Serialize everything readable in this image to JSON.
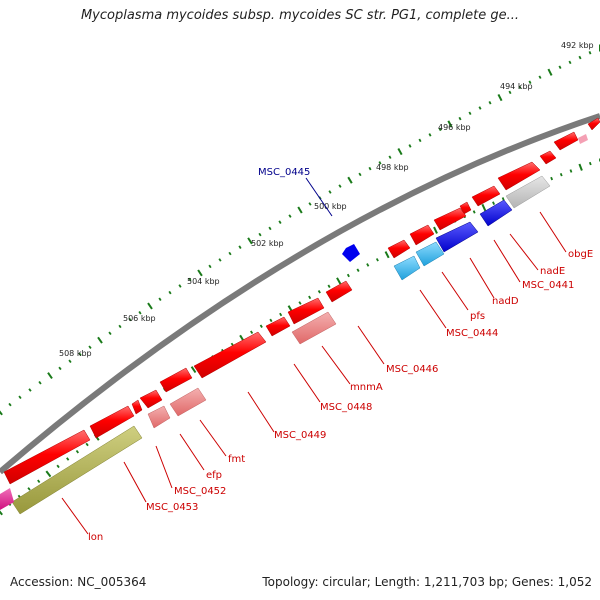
{
  "title": "Mycoplasma mycoides subsp. mycoides SC str. PG1, complete ge...",
  "footer": {
    "accession": "Accession: NC_005364",
    "summary": "Topology: circular; Length: 1,211,703 bp; Genes: 1,052"
  },
  "colors": {
    "backbone": "#7a7a7a",
    "gene_red": "#ff0000",
    "gene_light_red": "#e87c7c",
    "gene_blue": "#0000ee",
    "gene_cyan": "#33b4e8",
    "gene_gray": "#c8c8c8",
    "gene_olive": "#a8a850",
    "gene_magenta": "#e0208c",
    "tick": "#1a7a1a",
    "label_red": "#cc0000",
    "label_blue": "#00008b"
  },
  "kbp_ticks": [
    "492 kbp",
    "494 kbp",
    "496 kbp",
    "498 kbp",
    "500 kbp",
    "502 kbp",
    "504 kbp",
    "506 kbp",
    "508 kbp"
  ],
  "gene_labels": [
    "obgE",
    "nadE",
    "MSC_0441",
    "nadD",
    "pfs",
    "MSC_0444",
    "MSC_0445",
    "MSC_0446",
    "mnmA",
    "MSC_0448",
    "MSC_0449",
    "fmt",
    "efp",
    "MSC_0452",
    "MSC_0453",
    "lon"
  ]
}
